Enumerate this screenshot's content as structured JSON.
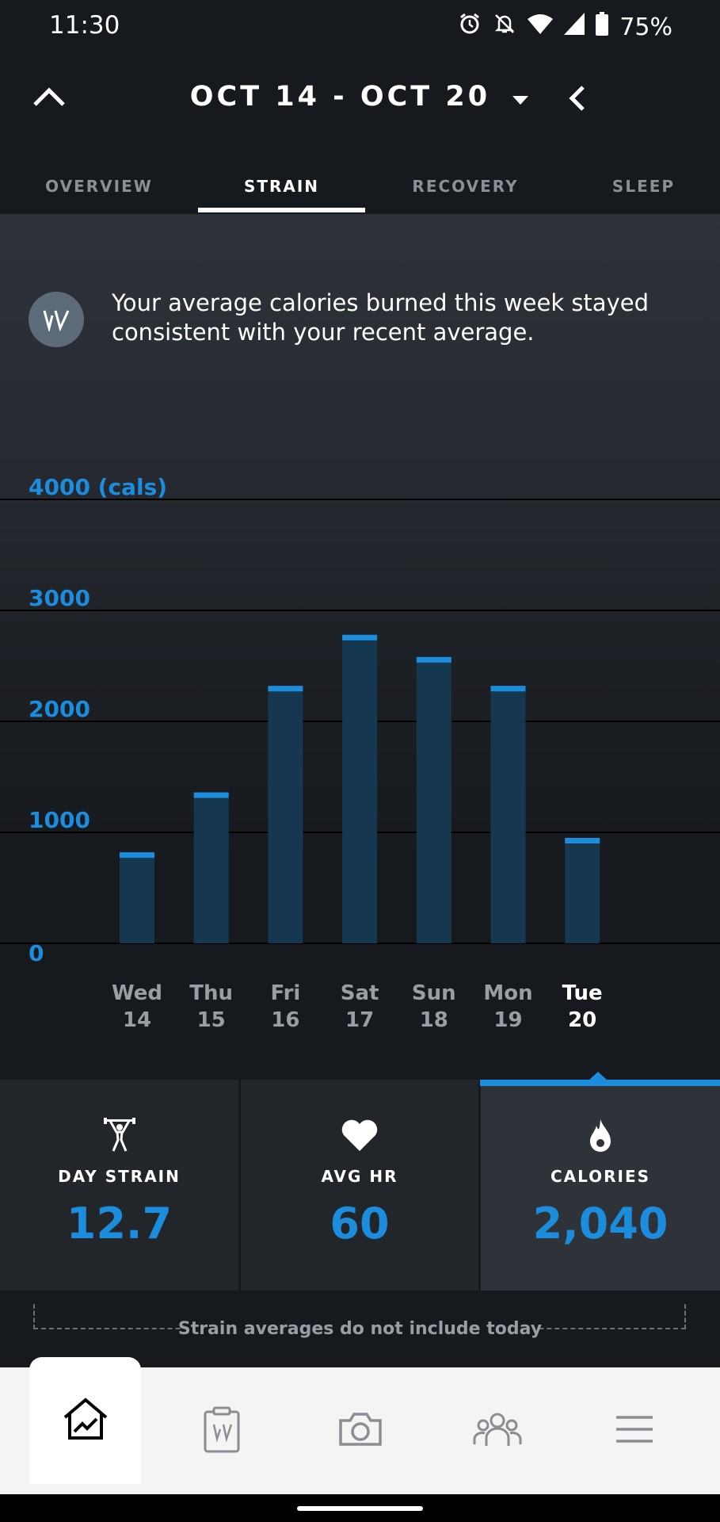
{
  "status_bar": {
    "time": "11:30",
    "battery": "75%",
    "icons": [
      "alarm-icon",
      "bell-off-icon",
      "wifi-icon",
      "signal-icon",
      "battery-icon"
    ]
  },
  "header": {
    "date_range": "OCT 14 - OCT 20",
    "icons": [
      "chevron-up-icon",
      "caret-down-icon",
      "chevron-left-icon"
    ]
  },
  "tabs": [
    {
      "label": "OVERVIEW",
      "active": false
    },
    {
      "label": "STRAIN",
      "active": true
    },
    {
      "label": "RECOVERY",
      "active": false
    },
    {
      "label": "SLEEP",
      "active": false
    }
  ],
  "insight": {
    "text": "Your average calories burned this week stayed consistent with your recent average."
  },
  "chart_data": {
    "type": "bar",
    "categories": [
      "Wed 14",
      "Thu 15",
      "Fri 16",
      "Sat 17",
      "Sun 18",
      "Mon 19",
      "Tue 20"
    ],
    "days": [
      {
        "day": "Wed",
        "date": "14"
      },
      {
        "day": "Thu",
        "date": "15"
      },
      {
        "day": "Fri",
        "date": "16"
      },
      {
        "day": "Sat",
        "date": "17"
      },
      {
        "day": "Sun",
        "date": "18"
      },
      {
        "day": "Mon",
        "date": "19"
      },
      {
        "day": "Tue",
        "date": "20"
      }
    ],
    "values": [
      820,
      1360,
      2320,
      2780,
      2580,
      2320,
      950
    ],
    "ylim": [
      0,
      4000
    ],
    "yticks": [
      "0",
      "1000",
      "2000",
      "3000",
      "4000 (cals)"
    ],
    "ytick_values": [
      0,
      1000,
      2000,
      3000,
      4000
    ],
    "highlighted_category": "Tue 20",
    "grid": true,
    "colors": {
      "bar": "#163750",
      "bar_cap": "#1b8ddc",
      "axis_label": "#1b8ddc",
      "grid": "#000000"
    }
  },
  "metrics": [
    {
      "label": "DAY STRAIN",
      "value": "12.7",
      "icon": "weightlifter-icon",
      "active": false
    },
    {
      "label": "AVG HR",
      "value": "60",
      "icon": "heart-icon",
      "active": false
    },
    {
      "label": "CALORIES",
      "value": "2,040",
      "icon": "flame-icon",
      "active": true
    }
  ],
  "footnote": "Strain averages do not include today",
  "bottom_nav": [
    {
      "icon": "home-chart-icon",
      "active": true
    },
    {
      "icon": "journal-icon",
      "active": false
    },
    {
      "icon": "camera-icon",
      "active": false
    },
    {
      "icon": "community-icon",
      "active": false
    },
    {
      "icon": "menu-icon",
      "active": false
    }
  ],
  "colors": {
    "accent": "#1b8ddc",
    "background": "#16191d",
    "panel": "#22262b",
    "panel_active": "#2e3339"
  }
}
